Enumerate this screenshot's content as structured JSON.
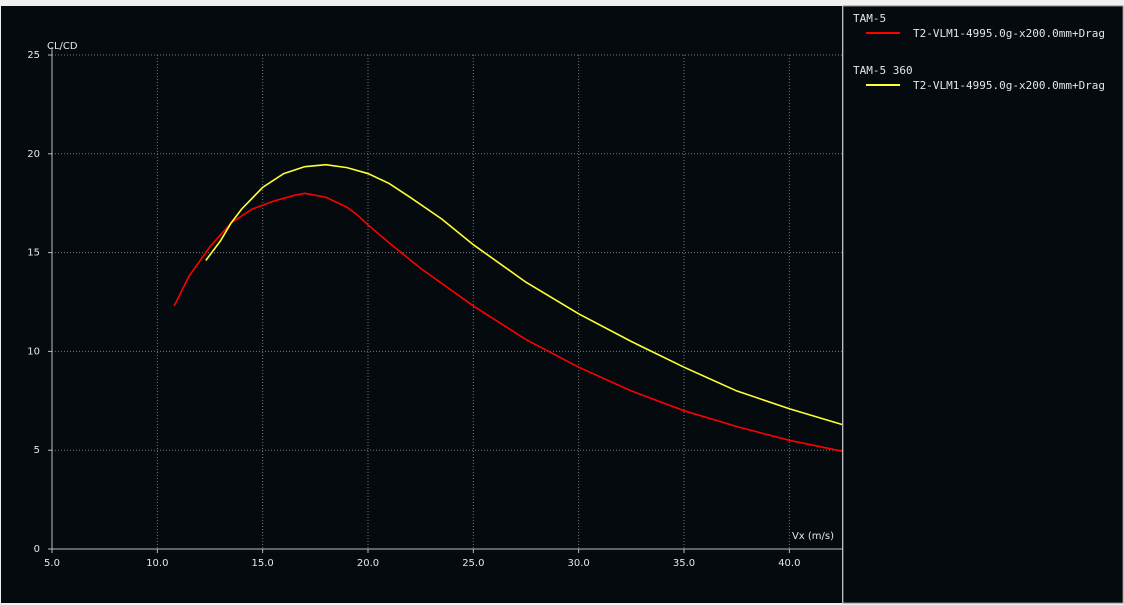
{
  "chart_data": {
    "type": "line",
    "y_label": "CL/CD",
    "x_label": "Vx (m/s)",
    "xlim": [
      5,
      42.5
    ],
    "ylim": [
      0,
      25
    ],
    "xticks": [
      {
        "value": 5,
        "label": "5.0"
      },
      {
        "value": 10,
        "label": "10.0"
      },
      {
        "value": 15,
        "label": "15.0"
      },
      {
        "value": 20,
        "label": "20.0"
      },
      {
        "value": 25,
        "label": "25.0"
      },
      {
        "value": 30,
        "label": "30.0"
      },
      {
        "value": 35,
        "label": "35.0"
      },
      {
        "value": 40,
        "label": "40.0"
      }
    ],
    "yticks": [
      0,
      5,
      10,
      15,
      20,
      25
    ],
    "grid": true,
    "series": [
      {
        "group": "TAM-5",
        "name": "T2-VLM1-4995.0g-x200.0mm+Drag",
        "color": "#ff0000",
        "x": [
          10.8,
          11.5,
          12.5,
          13.5,
          14.5,
          15.5,
          16.5,
          17,
          18,
          19,
          19.5,
          20,
          21,
          22.5,
          25,
          27.5,
          30,
          32.5,
          35,
          37.5,
          40,
          42.5
        ],
        "values": [
          12.3,
          13.8,
          15.3,
          16.5,
          17.2,
          17.6,
          17.9,
          18.0,
          17.8,
          17.3,
          16.9,
          16.4,
          15.5,
          14.2,
          12.3,
          10.6,
          9.2,
          8.0,
          7.0,
          6.2,
          5.5,
          4.95
        ]
      },
      {
        "group": "TAM-5 360",
        "name": "T2-VLM1-4995.0g-x200.0mm+Drag",
        "color": "#ffff33",
        "x": [
          12.3,
          13,
          13.5,
          14,
          15,
          16,
          17,
          18,
          19,
          20,
          21,
          22,
          23.5,
          25,
          27.5,
          30,
          32.5,
          35,
          37.5,
          40,
          42.5
        ],
        "values": [
          14.6,
          15.6,
          16.5,
          17.2,
          18.3,
          19.0,
          19.35,
          19.45,
          19.3,
          19.0,
          18.5,
          17.8,
          16.7,
          15.4,
          13.5,
          11.9,
          10.5,
          9.2,
          8.0,
          7.1,
          6.3
        ]
      }
    ]
  }
}
